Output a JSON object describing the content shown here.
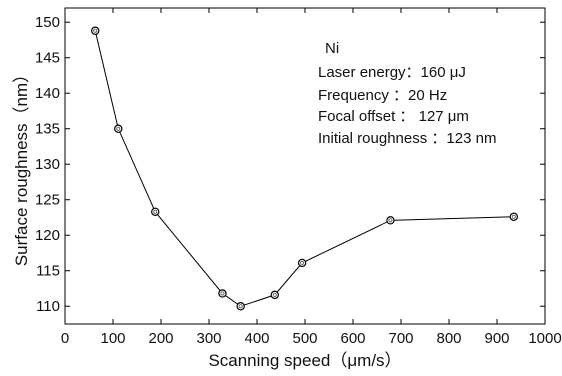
{
  "chart_data": {
    "type": "line",
    "xlabel": "Scanning speed（μm/s）",
    "ylabel": "Surface roughness（nm）",
    "xlim": [
      0,
      1000
    ],
    "ylim": [
      107.5,
      152
    ],
    "xticks": [
      0,
      100,
      200,
      300,
      400,
      500,
      600,
      700,
      800,
      900,
      1000
    ],
    "yticks": [
      110,
      115,
      120,
      125,
      130,
      135,
      140,
      145,
      150
    ],
    "grid": false,
    "series": [
      {
        "x": [
          63,
          111,
          188,
          328,
          366,
          437,
          494,
          678,
          935
        ],
        "y": [
          148.8,
          135.0,
          123.3,
          111.8,
          110.0,
          111.6,
          116.1,
          122.1,
          122.6
        ],
        "marker": "open-circle",
        "color": "#000000"
      }
    ],
    "annotations": [
      "Ni",
      "Laser energy：160 μJ",
      "Frequency ：20 Hz",
      "Focal offset ： 127 μm",
      "Initial roughness ：123 nm"
    ]
  }
}
